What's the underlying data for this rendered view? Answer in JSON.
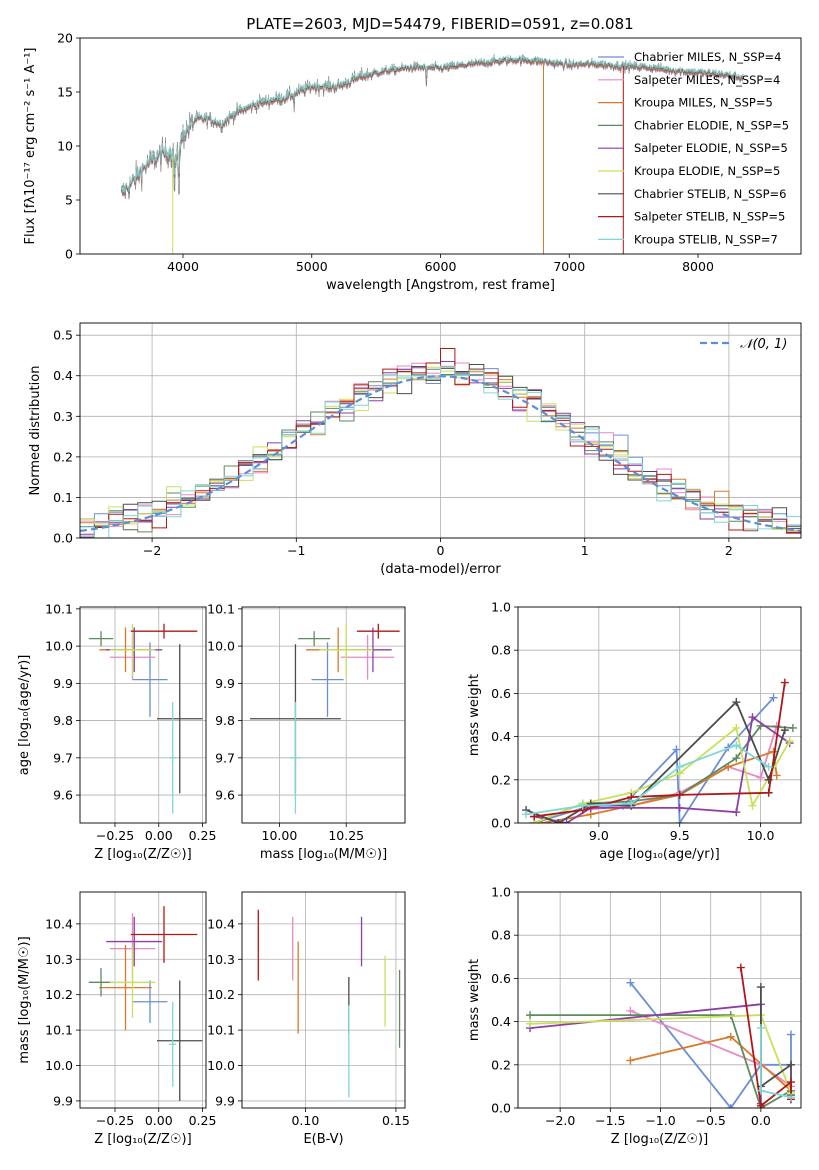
{
  "colors": {
    "chabrier_miles": "#6a8fd6",
    "salpeter_miles": "#e78ac3",
    "kroupa_miles": "#d97a2b",
    "chabrier_elodie": "#5f8a5e",
    "salpeter_elodie": "#8e3fa6",
    "kroupa_elodie": "#c8e05a",
    "chabrier_stelib": "#4d4d4d",
    "salpeter_stelib": "#b01818",
    "kroupa_stelib": "#7fd6d6",
    "normal_curve": "#5b8fd8",
    "grid": "#b0b0b0"
  },
  "chart_data": [
    {
      "id": "spectrum",
      "type": "line",
      "title": "PLATE=2603, MJD=54479, FIBERID=0591, z=0.081",
      "xlabel": "wavelength [Angstrom, rest frame]",
      "ylabel": "Flux [fλ10⁻¹⁷ erg cm⁻² s⁻¹ A⁻¹]",
      "xlim": [
        3200,
        8800
      ],
      "ylim": [
        0,
        20
      ],
      "xticks": [
        4000,
        5000,
        6000,
        7000,
        8000
      ],
      "yticks": [
        0,
        5,
        10,
        15,
        20
      ],
      "grid": false,
      "legend_position": "right",
      "continuum": {
        "x": [
          3520,
          3600,
          3700,
          3800,
          3900,
          3950,
          4000,
          4100,
          4200,
          4300,
          4400,
          4600,
          4800,
          5000,
          5200,
          5400,
          5600,
          5800,
          6000,
          6200,
          6400,
          6600,
          6800,
          7000,
          7200,
          7400,
          7600,
          7800,
          8000,
          8200,
          8350
        ],
        "y": [
          5.5,
          6.5,
          8.0,
          9.0,
          9.5,
          8.5,
          11.0,
          12.5,
          12.5,
          12.0,
          13.0,
          14.0,
          14.5,
          15.5,
          15.5,
          16.5,
          17.0,
          17.3,
          17.2,
          17.5,
          17.8,
          18.0,
          17.8,
          17.5,
          17.6,
          17.4,
          17.3,
          17.0,
          16.8,
          16.6,
          16.3
        ]
      },
      "series": [
        {
          "name": "Chabrier MILES, N_SSP=4",
          "key": "chabrier_miles"
        },
        {
          "name": "Salpeter MILES, N_SSP=4",
          "key": "salpeter_miles"
        },
        {
          "name": "Kroupa MILES, N_SSP=5",
          "key": "kroupa_miles"
        },
        {
          "name": "Chabrier ELODIE, N_SSP=5",
          "key": "chabrier_elodie"
        },
        {
          "name": "Salpeter ELODIE, N_SSP=5",
          "key": "salpeter_elodie"
        },
        {
          "name": "Kroupa ELODIE, N_SSP=5",
          "key": "kroupa_elodie"
        },
        {
          "name": "Chabrier STELIB, N_SSP=6",
          "key": "chabrier_stelib"
        },
        {
          "name": "Salpeter STELIB, N_SSP=5",
          "key": "salpeter_stelib"
        },
        {
          "name": "Kroupa STELIB, N_SSP=7",
          "key": "kroupa_stelib"
        }
      ]
    },
    {
      "id": "residuals",
      "type": "line",
      "xlabel": "(data-model)/error",
      "ylabel": "Normed distribution",
      "xlim": [
        -2.5,
        2.5
      ],
      "ylim": [
        0,
        0.53
      ],
      "xticks": [
        -2,
        -1,
        0,
        1,
        2
      ],
      "yticks": [
        0.0,
        0.1,
        0.2,
        0.3,
        0.4,
        0.5
      ],
      "grid": true,
      "legend": "𝒩(0, 1)",
      "legend_position": "top-right",
      "bin_width": 0.1,
      "series_keys": [
        "chabrier_miles",
        "salpeter_miles",
        "kroupa_miles",
        "chabrier_elodie",
        "salpeter_elodie",
        "kroupa_elodie",
        "chabrier_stelib",
        "salpeter_stelib",
        "kroupa_stelib"
      ]
    },
    {
      "id": "age_vs_Z",
      "type": "scatter",
      "xlabel": "Z [log₁₀(Z/Z☉)]",
      "ylabel": "age  [log₁₀(age/yr)]",
      "xlim": [
        -0.45,
        0.27
      ],
      "ylim": [
        9.525,
        10.105
      ],
      "xticks": [
        -0.25,
        0.0,
        0.25
      ],
      "yticks": [
        9.6,
        9.7,
        9.8,
        9.9,
        10.0,
        10.1
      ],
      "grid": true,
      "points": [
        {
          "key": "chabrier_miles",
          "x": -0.05,
          "y": 9.91,
          "xerr": 0.1,
          "yerr": 0.1
        },
        {
          "key": "salpeter_miles",
          "x": -0.15,
          "y": 9.97,
          "xerr": 0.13,
          "yerr": 0.06
        },
        {
          "key": "kroupa_miles",
          "x": -0.19,
          "y": 9.99,
          "xerr": 0.15,
          "yerr": 0.06
        },
        {
          "key": "chabrier_elodie",
          "x": -0.33,
          "y": 10.02,
          "xerr": 0.07,
          "yerr": 0.02
        },
        {
          "key": "salpeter_elodie",
          "x": -0.14,
          "y": 9.99,
          "xerr": 0.16,
          "yerr": 0.06
        },
        {
          "key": "kroupa_elodie",
          "x": -0.15,
          "y": 9.99,
          "xerr": 0.13,
          "yerr": 0.07
        },
        {
          "key": "chabrier_stelib",
          "x": 0.12,
          "y": 9.805,
          "xerr": 0.13,
          "yerr": 0.2
        },
        {
          "key": "salpeter_stelib",
          "x": 0.03,
          "y": 10.04,
          "xerr": 0.19,
          "yerr": 0.02
        },
        {
          "key": "kroupa_stelib",
          "x": 0.08,
          "y": 9.7,
          "xerr": 0.02,
          "yerr": 0.15
        }
      ]
    },
    {
      "id": "age_vs_mass",
      "type": "scatter",
      "xlabel": "mass [log₁₀(M/M☉)]",
      "ylabel": "",
      "xlim": [
        9.86,
        10.47
      ],
      "ylim": [
        9.525,
        10.105
      ],
      "xticks": [
        10.0,
        10.25
      ],
      "yticks": [
        9.6,
        9.7,
        9.8,
        9.9,
        10.0,
        10.1
      ],
      "grid": true,
      "points": [
        {
          "key": "chabrier_miles",
          "x": 10.18,
          "y": 9.91,
          "xerr": 0.06,
          "yerr": 0.1
        },
        {
          "key": "salpeter_miles",
          "x": 10.33,
          "y": 9.97,
          "xerr": 0.1,
          "yerr": 0.06
        },
        {
          "key": "kroupa_miles",
          "x": 10.22,
          "y": 9.99,
          "xerr": 0.12,
          "yerr": 0.06
        },
        {
          "key": "chabrier_elodie",
          "x": 10.13,
          "y": 10.02,
          "xerr": 0.06,
          "yerr": 0.02
        },
        {
          "key": "salpeter_elodie",
          "x": 10.35,
          "y": 9.99,
          "xerr": 0.07,
          "yerr": 0.06
        },
        {
          "key": "kroupa_elodie",
          "x": 10.25,
          "y": 9.99,
          "xerr": 0.1,
          "yerr": 0.07
        },
        {
          "key": "chabrier_stelib",
          "x": 10.06,
          "y": 9.805,
          "xerr": 0.17,
          "yerr": 0.2
        },
        {
          "key": "salpeter_stelib",
          "x": 10.37,
          "y": 10.04,
          "xerr": 0.08,
          "yerr": 0.02
        },
        {
          "key": "kroupa_stelib",
          "x": 10.06,
          "y": 9.7,
          "xerr": 0.02,
          "yerr": 0.15
        }
      ]
    },
    {
      "id": "massweight_vs_age",
      "type": "line",
      "xlabel": "age  [log₁₀(age/yr)]",
      "ylabel": "mass weight",
      "xlim": [
        8.5,
        10.25
      ],
      "ylim": [
        0,
        1.0
      ],
      "xticks": [
        9.0,
        9.5,
        10.0
      ],
      "yticks": [
        0.0,
        0.2,
        0.4,
        0.6,
        0.8,
        1.0
      ],
      "grid": true,
      "series": [
        {
          "key": "chabrier_miles",
          "x": [
            8.6,
            8.95,
            9.15,
            9.48,
            9.5,
            9.8,
            10.08
          ],
          "y": [
            0.0,
            0.08,
            0.08,
            0.34,
            0.0,
            0.35,
            0.58
          ]
        },
        {
          "key": "salpeter_miles",
          "x": [
            8.6,
            8.9,
            9.2,
            9.5,
            9.8,
            10.0,
            10.1
          ],
          "y": [
            0.03,
            0.06,
            0.08,
            0.14,
            0.26,
            0.21,
            0.45
          ]
        },
        {
          "key": "kroupa_miles",
          "x": [
            8.65,
            8.95,
            9.2,
            9.5,
            9.8,
            10.08,
            10.1
          ],
          "y": [
            0.0,
            0.04,
            0.08,
            0.13,
            0.26,
            0.33,
            0.22
          ]
        },
        {
          "key": "chabrier_elodie",
          "x": [
            8.6,
            8.9,
            9.2,
            9.5,
            9.85,
            10.0,
            10.2
          ],
          "y": [
            0.0,
            0.09,
            0.1,
            0.13,
            0.3,
            0.45,
            0.44
          ]
        },
        {
          "key": "salpeter_elodie",
          "x": [
            8.6,
            8.8,
            8.95,
            9.5,
            9.85,
            9.95,
            10.18
          ],
          "y": [
            0.03,
            0.0,
            0.07,
            0.07,
            0.05,
            0.49,
            0.37
          ]
        },
        {
          "key": "kroupa_elodie",
          "x": [
            8.6,
            8.9,
            9.2,
            9.5,
            9.85,
            9.95,
            10.18
          ],
          "y": [
            0.0,
            0.09,
            0.14,
            0.23,
            0.44,
            0.08,
            0.38
          ]
        },
        {
          "key": "chabrier_stelib",
          "x": [
            8.55,
            8.75,
            8.95,
            9.2,
            9.85,
            10.05,
            10.15
          ],
          "y": [
            0.06,
            0.0,
            0.09,
            0.08,
            0.56,
            0.2,
            0.43
          ]
        },
        {
          "key": "salpeter_stelib",
          "x": [
            8.6,
            8.9,
            9.2,
            9.5,
            10.05,
            10.15
          ],
          "y": [
            0.03,
            0.06,
            0.12,
            0.13,
            0.14,
            0.65
          ]
        },
        {
          "key": "kroupa_stelib",
          "x": [
            8.55,
            8.9,
            9.2,
            9.5,
            9.85,
            10.05
          ],
          "y": [
            0.04,
            0.08,
            0.09,
            0.26,
            0.36,
            0.26
          ]
        }
      ]
    },
    {
      "id": "mass_vs_Z",
      "type": "scatter",
      "xlabel": "Z [log₁₀(Z/Z☉)]",
      "ylabel": "mass [log₁₀(M/M☉)]",
      "xlim": [
        -0.45,
        0.27
      ],
      "ylim": [
        9.88,
        10.49
      ],
      "xticks": [
        -0.25,
        0.0,
        0.25
      ],
      "yticks": [
        9.9,
        10.0,
        10.1,
        10.2,
        10.3,
        10.4
      ],
      "grid": true,
      "points": [
        {
          "key": "chabrier_miles",
          "x": -0.05,
          "y": 10.18,
          "xerr": 0.1,
          "yerr": 0.06
        },
        {
          "key": "salpeter_miles",
          "x": -0.15,
          "y": 10.33,
          "xerr": 0.13,
          "yerr": 0.1
        },
        {
          "key": "kroupa_miles",
          "x": -0.19,
          "y": 10.22,
          "xerr": 0.15,
          "yerr": 0.12
        },
        {
          "key": "chabrier_elodie",
          "x": -0.33,
          "y": 10.235,
          "xerr": 0.07,
          "yerr": 0.04
        },
        {
          "key": "salpeter_elodie",
          "x": -0.14,
          "y": 10.35,
          "xerr": 0.16,
          "yerr": 0.07
        },
        {
          "key": "kroupa_elodie",
          "x": -0.15,
          "y": 10.235,
          "xerr": 0.13,
          "yerr": 0.1
        },
        {
          "key": "chabrier_stelib",
          "x": 0.12,
          "y": 10.07,
          "xerr": 0.13,
          "yerr": 0.17
        },
        {
          "key": "salpeter_stelib",
          "x": 0.03,
          "y": 10.37,
          "xerr": 0.19,
          "yerr": 0.08
        },
        {
          "key": "kroupa_stelib",
          "x": 0.08,
          "y": 10.06,
          "xerr": 0.02,
          "yerr": 0.12
        }
      ]
    },
    {
      "id": "mass_vs_ebv",
      "type": "scatter",
      "xlabel": "E(B-V)",
      "ylabel": "",
      "xlim": [
        0.065,
        0.155
      ],
      "ylim": [
        9.88,
        10.49
      ],
      "xticks": [
        0.1,
        0.15
      ],
      "yticks": [
        9.9,
        10.0,
        10.1,
        10.2,
        10.3,
        10.4
      ],
      "grid": true,
      "points": [
        {
          "key": "salpeter_stelib",
          "x": 0.074,
          "y": 10.34,
          "yerr": 0.1
        },
        {
          "key": "salpeter_miles",
          "x": 0.093,
          "y": 10.33,
          "yerr": 0.09
        },
        {
          "key": "kroupa_miles",
          "x": 0.096,
          "y": 10.22,
          "yerr": 0.13
        },
        {
          "key": "chabrier_stelib",
          "x": 0.124,
          "y": 10.17,
          "yerr": 0.08
        },
        {
          "key": "kroupa_stelib",
          "x": 0.124,
          "y": 10.04,
          "yerr": 0.13
        },
        {
          "key": "salpeter_elodie",
          "x": 0.131,
          "y": 10.35,
          "yerr": 0.07
        },
        {
          "key": "kroupa_elodie",
          "x": 0.144,
          "y": 10.21,
          "yerr": 0.1
        },
        {
          "key": "chabrier_elodie",
          "x": 0.152,
          "y": 10.16,
          "yerr": 0.11
        }
      ]
    },
    {
      "id": "massweight_vs_Z",
      "type": "line",
      "xlabel": "Z [log₁₀(Z/Z☉)]",
      "ylabel": "mass weight",
      "xlim": [
        -2.42,
        0.4
      ],
      "ylim": [
        0,
        1.0
      ],
      "xticks": [
        -2.0,
        -1.5,
        -1.0,
        -0.5,
        0.0
      ],
      "yticks": [
        0.0,
        0.2,
        0.4,
        0.6,
        0.8,
        1.0
      ],
      "grid": true,
      "series": [
        {
          "key": "chabrier_miles",
          "x": [
            -1.3,
            -0.3,
            0.0,
            0.3,
            0.3
          ],
          "y": [
            0.58,
            0.0,
            0.2,
            0.2,
            0.34
          ]
        },
        {
          "key": "salpeter_miles",
          "x": [
            -1.3,
            0.0,
            0.3
          ],
          "y": [
            0.45,
            0.2,
            0.1
          ]
        },
        {
          "key": "kroupa_miles",
          "x": [
            -1.3,
            -0.3,
            0.3
          ],
          "y": [
            0.22,
            0.33,
            0.08
          ]
        },
        {
          "key": "chabrier_elodie",
          "x": [
            -2.3,
            -0.3,
            0.0,
            0.3
          ],
          "y": [
            0.43,
            0.43,
            0.0,
            0.08
          ]
        },
        {
          "key": "salpeter_elodie",
          "x": [
            -2.3,
            0.0,
            0.0
          ],
          "y": [
            0.37,
            0.48,
            0.02
          ]
        },
        {
          "key": "kroupa_elodie",
          "x": [
            -2.3,
            0.0,
            0.3
          ],
          "y": [
            0.39,
            0.43,
            0.07
          ]
        },
        {
          "key": "chabrier_stelib",
          "x": [
            0.0,
            0.0,
            0.3,
            0.3
          ],
          "y": [
            0.56,
            0.1,
            0.2,
            0.06
          ]
        },
        {
          "key": "salpeter_stelib",
          "x": [
            -0.2,
            0.0,
            0.3,
            0.3
          ],
          "y": [
            0.65,
            0.01,
            0.12,
            0.04
          ]
        },
        {
          "key": "kroupa_stelib",
          "x": [
            0.0,
            0.0,
            0.3
          ],
          "y": [
            0.37,
            0.08,
            0.05
          ]
        }
      ]
    }
  ]
}
